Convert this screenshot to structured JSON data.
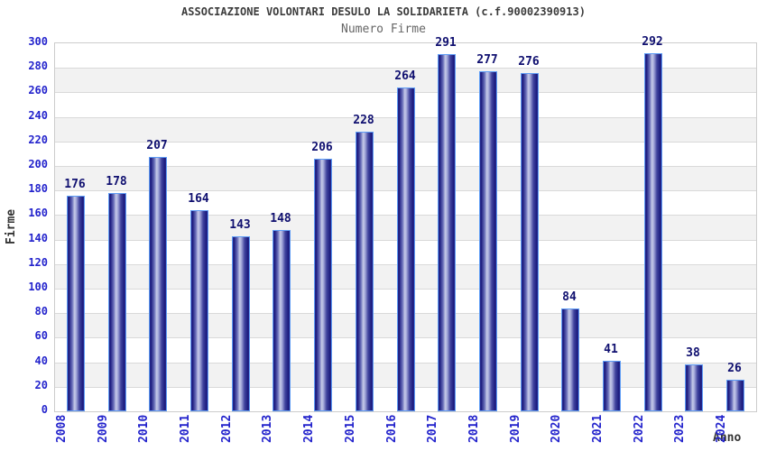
{
  "header": {
    "title": "ASSOCIAZIONE VOLONTARI DESULO LA SOLIDARIETA (c.f.90002390913)",
    "subtitle": "Numero Firme"
  },
  "chart_data": {
    "type": "bar",
    "title": "ASSOCIAZIONE VOLONTARI DESULO LA SOLIDARIETA (c.f.90002390913)",
    "subtitle": "Numero Firme",
    "categories": [
      "2008",
      "2009",
      "2010",
      "2011",
      "2012",
      "2013",
      "2014",
      "2015",
      "2016",
      "2017",
      "2018",
      "2019",
      "2020",
      "2021",
      "2022",
      "2023",
      "2024"
    ],
    "values": [
      176,
      178,
      207,
      164,
      143,
      148,
      206,
      228,
      264,
      291,
      277,
      276,
      84,
      41,
      292,
      38,
      26
    ],
    "xlabel": "Anno",
    "ylabel": "Firme",
    "ylim": [
      0,
      300
    ],
    "ytick_step": 20,
    "yticks": [
      0,
      20,
      40,
      60,
      80,
      100,
      120,
      140,
      160,
      180,
      200,
      220,
      240,
      260,
      280,
      300
    ],
    "grid": true,
    "legend": false,
    "bands_alternating": true,
    "colors": {
      "tick_label": "#2323cc",
      "value_label": "#101070",
      "axis_label": "#333333",
      "title": "#3c3c3c",
      "subtitle": "#666666",
      "bar_edge": "#2a2a8e",
      "bar_dark": "#1b1b7e",
      "bar_mid": "#6a6fba",
      "bar_light": "#c6cae8",
      "bar_border": "#5e9cf5",
      "band_alt": "#f2f2f2",
      "gridline": "#d9d9d9",
      "plot_border": "#cccccc"
    }
  }
}
